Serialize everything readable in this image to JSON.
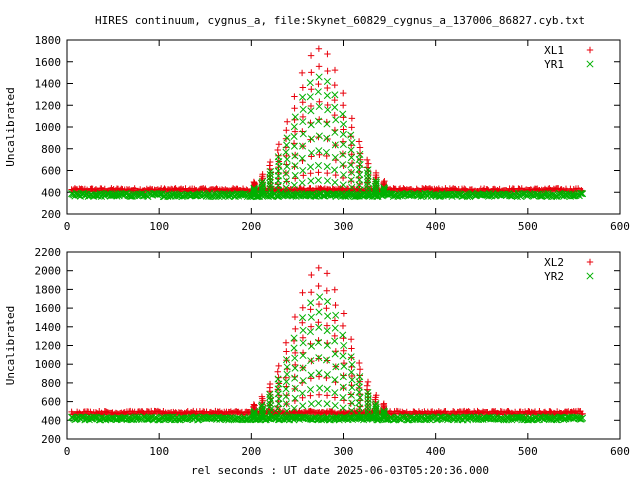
{
  "title": "HIRES continuum, cygnus_a, file:Skynet_60829_cygnus_a_137006_86827.cyb.txt",
  "xlabel": "rel seconds : UT date 2025-06-03T05:20:36.000",
  "colors": {
    "red": "#e8000b",
    "green": "#00b000"
  },
  "chart_data": [
    {
      "type": "scatter",
      "ylabel": "Uncalibrated",
      "xlim": [
        0,
        600
      ],
      "ylim": [
        200,
        1800
      ],
      "xticks": [
        0,
        100,
        200,
        300,
        400,
        500,
        600
      ],
      "yticks": [
        200,
        400,
        600,
        800,
        1000,
        1200,
        1400,
        1600,
        1800
      ],
      "grid": false,
      "legend": "top-right",
      "series": [
        {
          "name": "XL1",
          "marker": "plus",
          "baseline": 420,
          "peak": 1720
        },
        {
          "name": "YR1",
          "marker": "cross",
          "baseline": 375,
          "peak": 1460
        }
      ],
      "source_span_x": [
        5,
        560
      ],
      "source_peak_x": 274
    },
    {
      "type": "scatter",
      "ylabel": "Uncalibrated",
      "xlim": [
        0,
        600
      ],
      "ylim": [
        200,
        2200
      ],
      "xticks": [
        0,
        100,
        200,
        300,
        400,
        500,
        600
      ],
      "yticks": [
        200,
        400,
        600,
        800,
        1000,
        1200,
        1400,
        1600,
        1800,
        2000,
        2200
      ],
      "grid": false,
      "legend": "top-right",
      "series": [
        {
          "name": "XL2",
          "marker": "plus",
          "baseline": 480,
          "peak": 2030
        },
        {
          "name": "YR2",
          "marker": "cross",
          "baseline": 420,
          "peak": 1720
        }
      ],
      "source_span_x": [
        5,
        560
      ],
      "source_peak_x": 274
    }
  ]
}
